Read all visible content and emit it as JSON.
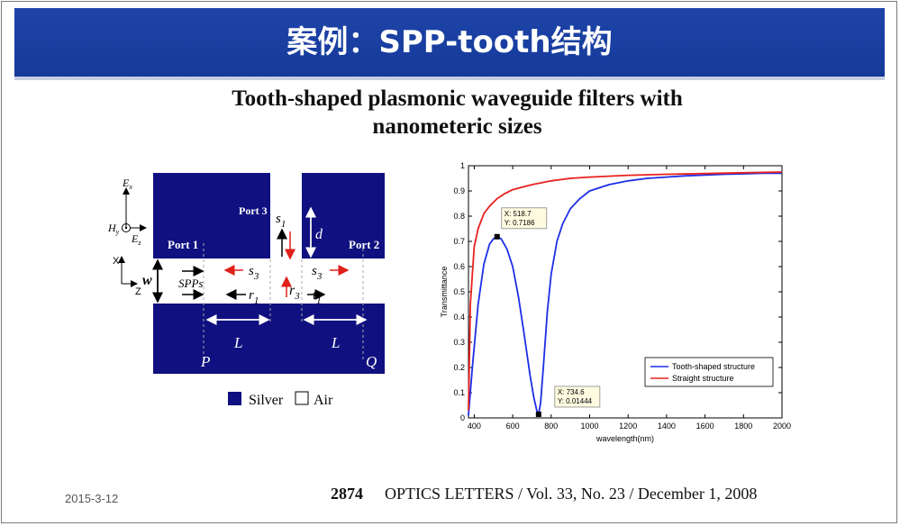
{
  "slide": {
    "title": "案例：SPP-tooth结构",
    "date": "2015-3-12"
  },
  "paper": {
    "title_line1": "Tooth-shaped plasmonic waveguide filters with",
    "title_line2": "nanometeric sizes",
    "citation_page": "2874",
    "citation_text": "OPTICS LETTERS / Vol. 33, No. 23 / December 1, 2008"
  },
  "diagram": {
    "port1": "Port 1",
    "port2": "Port 2",
    "port3": "Port 3",
    "wt_w": "w",
    "wt_t": "t",
    "s1_s": "s",
    "s1_sub": "1",
    "d": "d",
    "s3_left_s": "s",
    "s3_left_sub": "3",
    "s3_right_s": "s",
    "s3_right_sub": "3",
    "r1_r": "r",
    "r1_sub": "1",
    "r3_r": "r",
    "r3_sub": "3",
    "t1_t": "t",
    "t1_sub": "1",
    "w": "w",
    "spps": "SPPs",
    "L_left": "L",
    "L_right": "L",
    "P": "P",
    "Q": "Q",
    "Ex_E": "E",
    "Ex_sub": "x",
    "Hy_H": "H",
    "Hy_sub": "y",
    "Ez_E": "E",
    "Ez_sub": "z",
    "axis_x": "X",
    "axis_z": "Z",
    "legend_silver": "Silver",
    "legend_air": "Air",
    "silver_color": "#101080"
  },
  "chart_data": {
    "type": "line",
    "xlabel": "wavelength(nm)",
    "ylabel": "Transmittance",
    "xlim": [
      370,
      2000
    ],
    "ylim": [
      0,
      1
    ],
    "x_ticks": [
      400,
      600,
      800,
      1000,
      1200,
      1400,
      1600,
      1800,
      2000
    ],
    "y_ticks": [
      0,
      0.1,
      0.2,
      0.3,
      0.4,
      0.5,
      0.6,
      0.7,
      0.8,
      0.9,
      1
    ],
    "grid": false,
    "legend_position": "bottom-right",
    "series": [
      {
        "name": "Tooth-shaped structure",
        "color": "#1c2ee6",
        "x": [
          370,
          390,
          420,
          450,
          480,
          500,
          518.7,
          540,
          570,
          600,
          630,
          660,
          690,
          710,
          725,
          734.6,
          745,
          760,
          780,
          800,
          830,
          860,
          900,
          950,
          1000,
          1100,
          1200,
          1300,
          1400,
          1500,
          1600,
          1700,
          1800,
          1900,
          2000
        ],
        "y": [
          0.01,
          0.2,
          0.45,
          0.61,
          0.69,
          0.71,
          0.7186,
          0.71,
          0.67,
          0.6,
          0.48,
          0.33,
          0.17,
          0.08,
          0.03,
          0.01444,
          0.06,
          0.21,
          0.42,
          0.57,
          0.7,
          0.77,
          0.83,
          0.87,
          0.9,
          0.925,
          0.94,
          0.95,
          0.955,
          0.96,
          0.963,
          0.966,
          0.968,
          0.97,
          0.97
        ]
      },
      {
        "name": "Straight structure",
        "color": "#e8211e",
        "x": [
          370,
          380,
          400,
          420,
          450,
          480,
          520,
          560,
          600,
          650,
          700,
          800,
          900,
          1000,
          1200,
          1400,
          1600,
          1800,
          2000
        ],
        "y": [
          0.03,
          0.45,
          0.68,
          0.75,
          0.81,
          0.84,
          0.87,
          0.89,
          0.905,
          0.915,
          0.925,
          0.94,
          0.95,
          0.955,
          0.962,
          0.966,
          0.969,
          0.972,
          0.975
        ]
      }
    ],
    "annotations": [
      {
        "x": 518.7,
        "y": 0.7186,
        "line1": "X: 518.7",
        "line2": "Y: 0.7186"
      },
      {
        "x": 734.6,
        "y": 0.01444,
        "line1": "X: 734.6",
        "line2": "Y: 0.01444"
      }
    ]
  }
}
